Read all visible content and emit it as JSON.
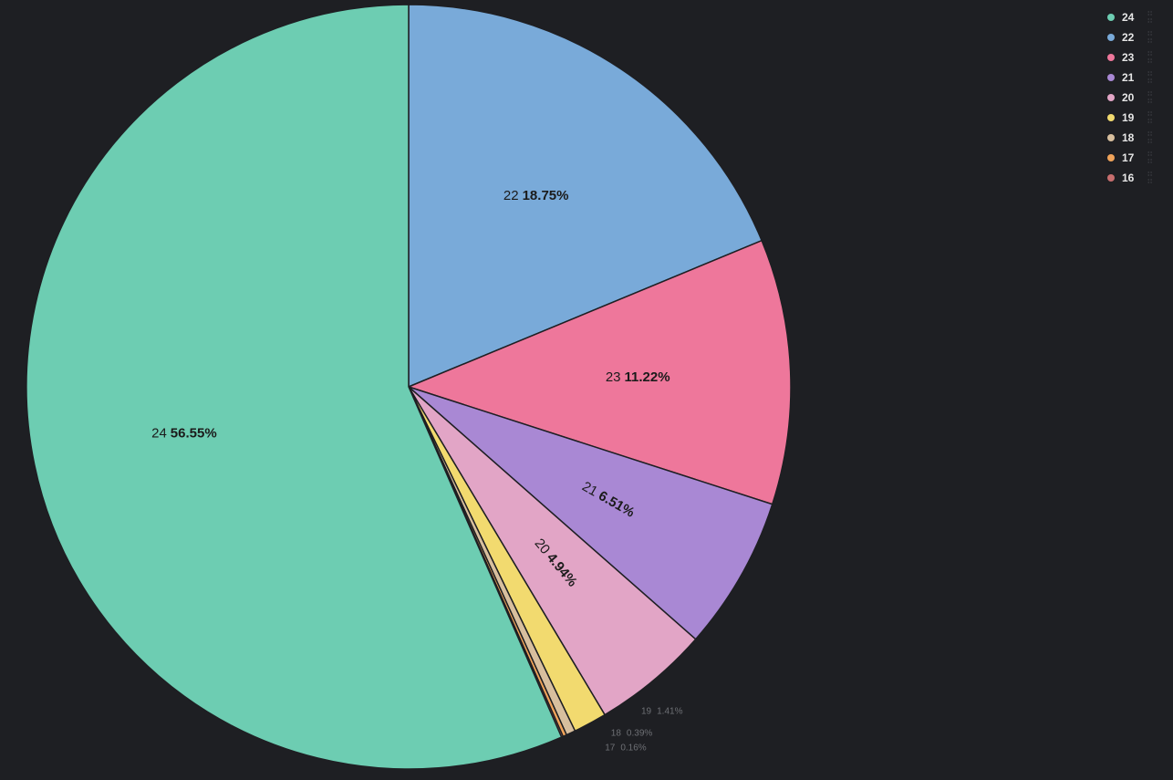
{
  "chart_data": {
    "type": "pie",
    "title": "",
    "start_angle_deg": 0,
    "direction": "clockwise",
    "slices": [
      {
        "label": "22",
        "value": 18.75,
        "pct_text": "18.75%",
        "color": "#79aad9"
      },
      {
        "label": "23",
        "value": 11.22,
        "pct_text": "11.22%",
        "color": "#ee779b"
      },
      {
        "label": "21",
        "value": 6.51,
        "pct_text": "6.51%",
        "color": "#a988d4"
      },
      {
        "label": "20",
        "value": 4.94,
        "pct_text": "4.94%",
        "color": "#e2a5c6"
      },
      {
        "label": "19",
        "value": 1.41,
        "pct_text": "1.41%",
        "color": "#f2da6f"
      },
      {
        "label": "18",
        "value": 0.39,
        "pct_text": "0.39%",
        "color": "#d8bf9e"
      },
      {
        "label": "17",
        "value": 0.16,
        "pct_text": "0.16%",
        "color": "#f0a35a"
      },
      {
        "label": "16",
        "value": 0.07,
        "pct_text": "",
        "color": "#c76e6e"
      },
      {
        "label": "24",
        "value": 56.55,
        "pct_text": "56.55%",
        "color": "#6dcdb2"
      }
    ],
    "legend": {
      "placement": "top-right",
      "items": [
        {
          "label": "24",
          "color": "#6dcdb2"
        },
        {
          "label": "22",
          "color": "#79aad9"
        },
        {
          "label": "23",
          "color": "#ee779b"
        },
        {
          "label": "21",
          "color": "#a988d4"
        },
        {
          "label": "20",
          "color": "#e2a5c6"
        },
        {
          "label": "19",
          "color": "#f2da6f"
        },
        {
          "label": "18",
          "color": "#d8bf9e"
        },
        {
          "label": "17",
          "color": "#f0a35a"
        },
        {
          "label": "16",
          "color": "#c76e6e"
        }
      ]
    }
  },
  "theme": {
    "background": "#1e1f23",
    "slice_border": "#1e1f23",
    "label_dark": "#1b1b1b",
    "label_muted": "#6e7075"
  }
}
